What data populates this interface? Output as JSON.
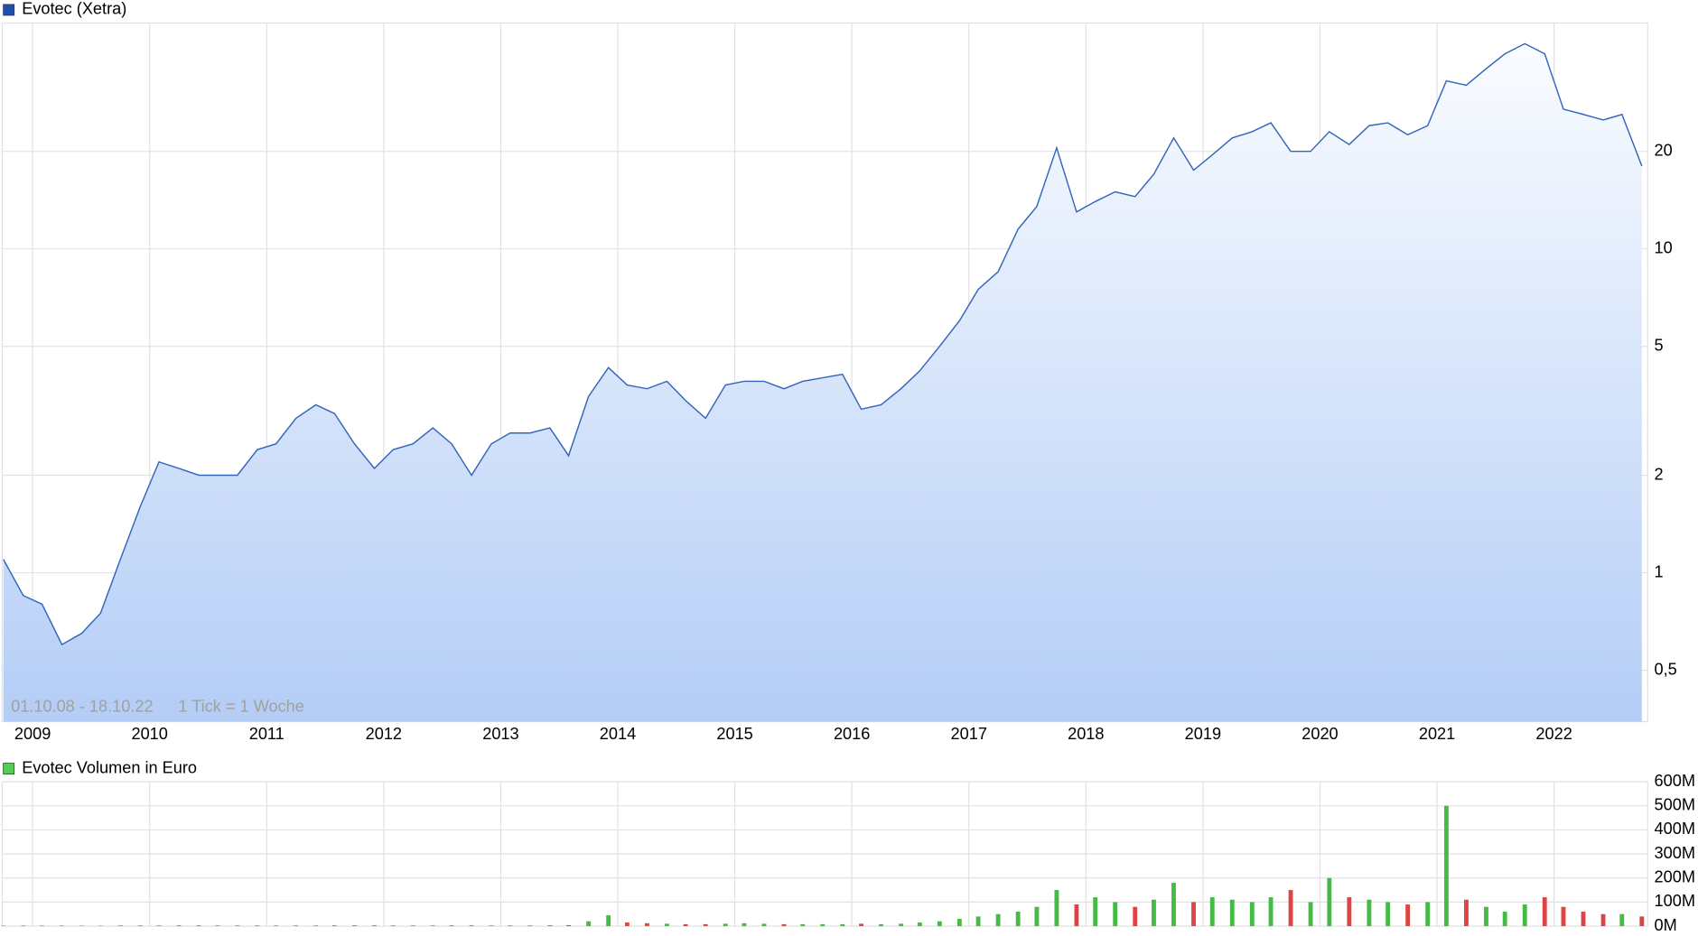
{
  "chart_data": [
    {
      "type": "line",
      "title": "Evotec (Xetra)",
      "subtitle": "01.10.08 - 18.10.22",
      "annotation": "1 Tick = 1 Woche",
      "log_scale": true,
      "grid": true,
      "x": [
        2008.75,
        2008.92,
        2009.08,
        2009.25,
        2009.42,
        2009.58,
        2009.75,
        2009.92,
        2010.08,
        2010.25,
        2010.42,
        2010.58,
        2010.75,
        2010.92,
        2011.08,
        2011.25,
        2011.42,
        2011.58,
        2011.75,
        2011.92,
        2012.08,
        2012.25,
        2012.42,
        2012.58,
        2012.75,
        2012.92,
        2013.08,
        2013.25,
        2013.42,
        2013.58,
        2013.75,
        2013.92,
        2014.08,
        2014.25,
        2014.42,
        2014.58,
        2014.75,
        2014.92,
        2015.08,
        2015.25,
        2015.42,
        2015.58,
        2015.75,
        2015.92,
        2016.08,
        2016.25,
        2016.42,
        2016.58,
        2016.75,
        2016.92,
        2017.08,
        2017.25,
        2017.42,
        2017.58,
        2017.75,
        2017.92,
        2018.08,
        2018.25,
        2018.42,
        2018.58,
        2018.75,
        2018.92,
        2019.08,
        2019.25,
        2019.42,
        2019.58,
        2019.75,
        2019.92,
        2020.08,
        2020.25,
        2020.42,
        2020.58,
        2020.75,
        2020.92,
        2021.08,
        2021.25,
        2021.42,
        2021.58,
        2021.75,
        2021.92,
        2022.08,
        2022.25,
        2022.42,
        2022.58,
        2022.75
      ],
      "series": [
        {
          "name": "Evotec (Xetra)",
          "color": "#3366bb",
          "values": [
            1.1,
            0.85,
            0.8,
            0.6,
            0.65,
            0.75,
            1.1,
            1.6,
            2.2,
            2.1,
            2.0,
            2.0,
            2.0,
            2.4,
            2.5,
            3.0,
            3.3,
            3.1,
            2.5,
            2.1,
            2.4,
            2.5,
            2.8,
            2.5,
            2.0,
            2.5,
            2.7,
            2.7,
            2.8,
            2.3,
            3.5,
            4.3,
            3.8,
            3.7,
            3.9,
            3.4,
            3.0,
            3.8,
            3.9,
            3.9,
            3.7,
            3.9,
            4.0,
            4.1,
            3.2,
            3.3,
            3.7,
            4.2,
            5.0,
            6.0,
            7.5,
            8.5,
            11.5,
            13.5,
            20.5,
            13,
            14,
            15,
            14.5,
            17,
            22,
            17.5,
            19.5,
            22,
            23,
            24.5,
            20,
            20,
            23,
            21,
            24,
            24.5,
            22.5,
            24,
            33,
            32,
            36,
            40,
            43,
            40,
            27,
            26,
            25,
            26,
            18
          ]
        }
      ],
      "xlim": [
        2008.74,
        2022.8
      ],
      "xticks": [
        2009,
        2010,
        2011,
        2012,
        2013,
        2014,
        2015,
        2016,
        2017,
        2018,
        2019,
        2020,
        2021,
        2022
      ],
      "ylim": [
        0.347,
        49.8
      ],
      "yticks": [
        {
          "value": 0.5,
          "label": "0,5"
        },
        1,
        2,
        5,
        10,
        20
      ]
    },
    {
      "type": "bar",
      "title": "Evotec Volumen in Euro",
      "grid": true,
      "up_color": "#44bb44",
      "down_color": "#dd4444",
      "x": [
        2008.75,
        2008.92,
        2009.08,
        2009.25,
        2009.42,
        2009.58,
        2009.75,
        2009.92,
        2010.08,
        2010.25,
        2010.42,
        2010.58,
        2010.75,
        2010.92,
        2011.08,
        2011.25,
        2011.42,
        2011.58,
        2011.75,
        2011.92,
        2012.08,
        2012.25,
        2012.42,
        2012.58,
        2012.75,
        2012.92,
        2013.08,
        2013.25,
        2013.42,
        2013.58,
        2013.75,
        2013.92,
        2014.08,
        2014.25,
        2014.42,
        2014.58,
        2014.75,
        2014.92,
        2015.08,
        2015.25,
        2015.42,
        2015.58,
        2015.75,
        2015.92,
        2016.08,
        2016.25,
        2016.42,
        2016.58,
        2016.75,
        2016.92,
        2017.08,
        2017.25,
        2017.42,
        2017.58,
        2017.75,
        2017.92,
        2018.08,
        2018.25,
        2018.42,
        2018.58,
        2018.75,
        2018.92,
        2019.08,
        2019.25,
        2019.42,
        2019.58,
        2019.75,
        2019.92,
        2020.08,
        2020.25,
        2020.42,
        2020.58,
        2020.75,
        2020.92,
        2021.08,
        2021.25,
        2021.42,
        2021.58,
        2021.75,
        2021.92,
        2022.08,
        2022.25,
        2022.42,
        2022.58,
        2022.75
      ],
      "series": [
        {
          "name": "Evotec Volumen in Euro",
          "color": "#55cc55",
          "values": [
            2,
            2,
            2,
            2,
            2,
            2,
            3,
            3,
            3,
            3,
            3,
            3,
            3,
            3,
            3,
            3,
            3,
            3,
            3,
            3,
            3,
            3,
            3,
            3,
            3,
            3,
            3,
            3,
            4,
            4,
            20,
            45,
            15,
            12,
            10,
            8,
            8,
            10,
            12,
            10,
            8,
            8,
            8,
            8,
            10,
            8,
            10,
            15,
            20,
            30,
            40,
            50,
            60,
            80,
            150,
            90,
            120,
            100,
            80,
            110,
            180,
            100,
            120,
            110,
            100,
            120,
            150,
            100,
            200,
            120,
            110,
            100,
            90,
            100,
            500,
            110,
            80,
            60,
            90,
            120,
            80,
            60,
            50,
            50,
            40
          ]
        }
      ],
      "xlim": [
        2008.74,
        2022.8
      ],
      "xticks": [
        2009,
        2010,
        2011,
        2012,
        2013,
        2014,
        2015,
        2016,
        2017,
        2018,
        2019,
        2020,
        2021,
        2022
      ],
      "ylim": [
        0,
        600
      ],
      "yticks": [
        {
          "value": 0,
          "label": "0M"
        },
        {
          "value": 100,
          "label": "100M"
        },
        {
          "value": 200,
          "label": "200M"
        },
        {
          "value": 300,
          "label": "300M"
        },
        {
          "value": 400,
          "label": "400M"
        },
        {
          "value": 500,
          "label": "500M"
        },
        {
          "value": 600,
          "label": "600M"
        }
      ]
    }
  ]
}
